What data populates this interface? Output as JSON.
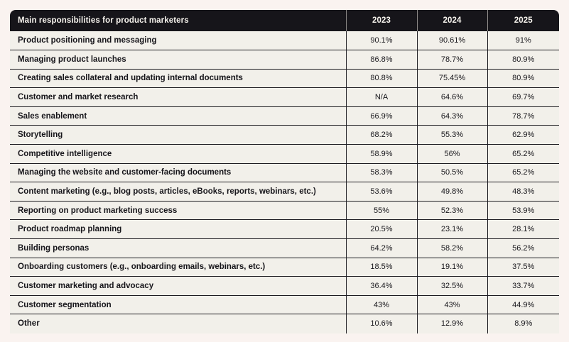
{
  "colors": {
    "page_background": "#faf3f0",
    "header_background": "#16151a",
    "header_text": "#f7f4ee",
    "row_background": "#f2f0ea",
    "body_text": "#17161b",
    "border": "#1c1b20"
  },
  "chart_data": {
    "type": "table",
    "title": "Main responsibilities for product marketers",
    "columns": [
      "Main responsibilities for product marketers",
      "2023",
      "2024",
      "2025"
    ],
    "rows": [
      {
        "label": "Product positioning and messaging",
        "values": [
          "90.1%",
          "90.61%",
          "91%"
        ]
      },
      {
        "label": "Managing product launches",
        "values": [
          "86.8%",
          "78.7%",
          "80.9%"
        ]
      },
      {
        "label": "Creating sales collateral and updating internal documents",
        "values": [
          "80.8%",
          "75.45%",
          "80.9%"
        ]
      },
      {
        "label": "Customer and market research",
        "values": [
          "N/A",
          "64.6%",
          "69.7%"
        ]
      },
      {
        "label": "Sales enablement",
        "values": [
          "66.9%",
          "64.3%",
          "78.7%"
        ]
      },
      {
        "label": "Storytelling",
        "values": [
          "68.2%",
          "55.3%",
          "62.9%"
        ]
      },
      {
        "label": "Competitive intelligence",
        "values": [
          "58.9%",
          "56%",
          "65.2%"
        ]
      },
      {
        "label": "Managing the website and customer-facing documents",
        "values": [
          "58.3%",
          "50.5%",
          "65.2%"
        ]
      },
      {
        "label": "Content marketing (e.g., blog posts, articles, eBooks, reports, webinars, etc.)",
        "values": [
          "53.6%",
          "49.8%",
          "48.3%"
        ]
      },
      {
        "label": "Reporting on product marketing success",
        "values": [
          "55%",
          "52.3%",
          "53.9%"
        ]
      },
      {
        "label": "Product roadmap planning",
        "values": [
          "20.5%",
          "23.1%",
          "28.1%"
        ]
      },
      {
        "label": "Building personas",
        "values": [
          "64.2%",
          "58.2%",
          "56.2%"
        ]
      },
      {
        "label": "Onboarding customers (e.g., onboarding emails, webinars, etc.)",
        "values": [
          "18.5%",
          "19.1%",
          "37.5%"
        ]
      },
      {
        "label": "Customer marketing and advocacy",
        "values": [
          "36.4%",
          "32.5%",
          "33.7%"
        ]
      },
      {
        "label": "Customer segmentation",
        "values": [
          "43%",
          "43%",
          "44.9%"
        ]
      },
      {
        "label": "Other",
        "values": [
          "10.6%",
          "12.9%",
          "8.9%"
        ]
      }
    ]
  }
}
